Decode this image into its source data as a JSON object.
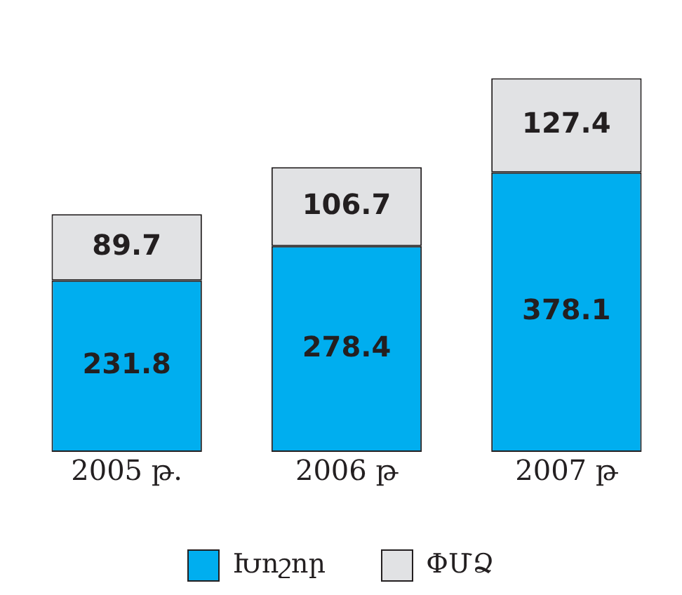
{
  "chart_data": {
    "type": "bar",
    "stacked": true,
    "data_labels": true,
    "legend": "bottom",
    "grid": false,
    "categories": [
      "2005 թ.",
      "2006 թ",
      "2007 թ"
    ],
    "series": [
      {
        "name": "Խոշոր",
        "color": "#00aeef",
        "values": [
          231.8,
          278.4,
          378.1
        ]
      },
      {
        "name": "ՓՄՁ",
        "color": "#e1e2e4",
        "values": [
          89.7,
          106.7,
          127.4
        ]
      }
    ]
  }
}
